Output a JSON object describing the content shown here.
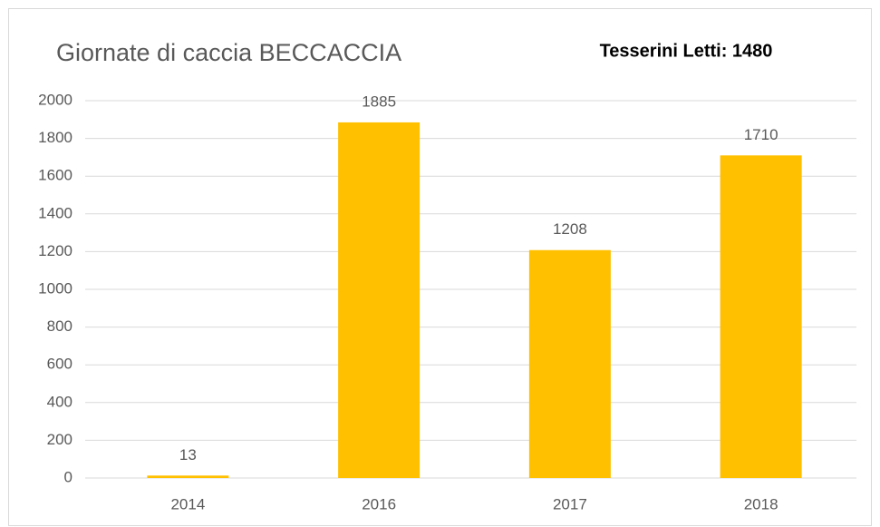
{
  "chart_data": {
    "type": "bar",
    "title": "Giornate di caccia BECCACCIA",
    "annotation": "Tesserini Letti: 1480",
    "categories": [
      "2014",
      "2016",
      "2017",
      "2018"
    ],
    "values": [
      13,
      1885,
      1208,
      1710
    ],
    "color": "#ffc000",
    "ylim": [
      0,
      2000
    ],
    "yticks": [
      0,
      200,
      400,
      600,
      800,
      1000,
      1200,
      1400,
      1600,
      1800,
      2000
    ],
    "grid": true
  }
}
